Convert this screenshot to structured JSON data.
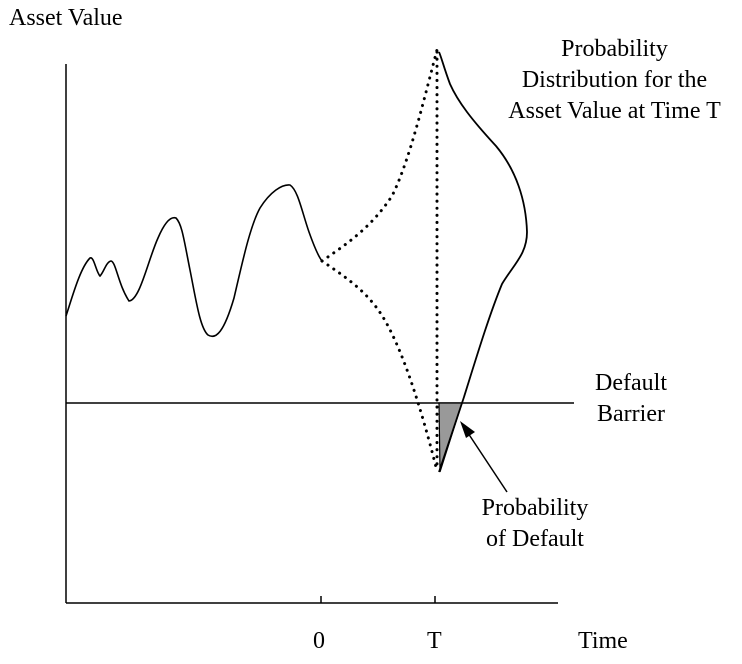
{
  "labels": {
    "y_axis": "Asset Value",
    "x_axis": "Time",
    "time_zero": "0",
    "time_t": "T",
    "distribution": [
      "Probability",
      "Distribution for the",
      "Asset Value at Time T"
    ],
    "barrier": [
      "Default",
      "Barrier"
    ],
    "default_probability": [
      "Probability",
      "of Default"
    ]
  },
  "colors": {
    "lines": "#000000",
    "default_area_fill": "#999999",
    "background": "#ffffff"
  }
}
